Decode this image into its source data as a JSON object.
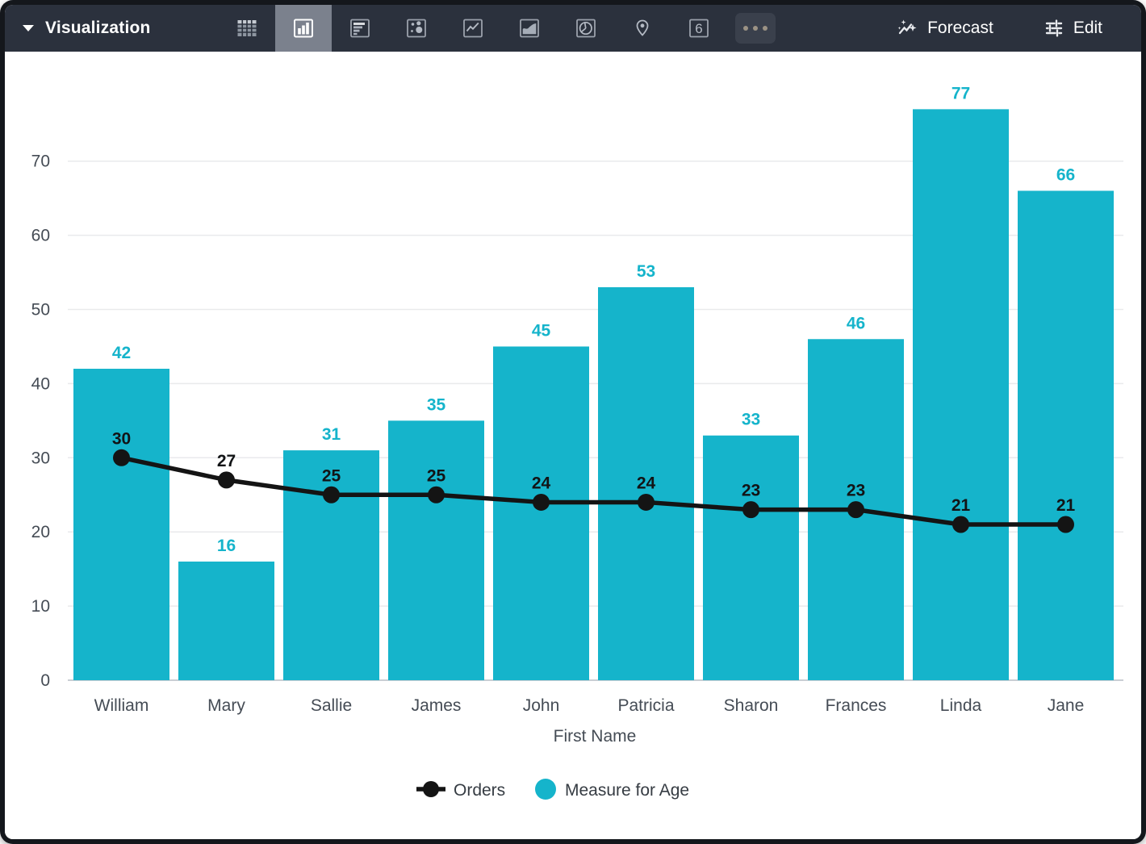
{
  "toolbar": {
    "title": "Visualization",
    "chart_types": [
      {
        "name": "table",
        "selected": false
      },
      {
        "name": "bar",
        "selected": true
      },
      {
        "name": "row",
        "selected": false
      },
      {
        "name": "scatter",
        "selected": false
      },
      {
        "name": "line",
        "selected": false
      },
      {
        "name": "area",
        "selected": false
      },
      {
        "name": "pie",
        "selected": false
      },
      {
        "name": "map",
        "selected": false
      },
      {
        "name": "single-value",
        "selected": false,
        "glyph": "6"
      },
      {
        "name": "more",
        "selected": false
      }
    ],
    "forecast_label": "Forecast",
    "edit_label": "Edit"
  },
  "colors": {
    "bar_teal": "#15b4cb",
    "line_black": "#141414",
    "toolbar_bg": "#2b313d",
    "selected_type_bg": "#7b818d",
    "axis_text": "#454c55",
    "gridline": "#e9eaec",
    "baseline": "#c9ced4"
  },
  "chart_data": {
    "type": "combo",
    "categories": [
      "William",
      "Mary",
      "Sallie",
      "James",
      "John",
      "Patricia",
      "Sharon",
      "Frances",
      "Linda",
      "Jane"
    ],
    "series": [
      {
        "name": "Orders",
        "type": "line",
        "color": "#141414",
        "values": [
          30,
          27,
          25,
          25,
          24,
          24,
          23,
          23,
          21,
          21
        ]
      },
      {
        "name": "Measure for Age",
        "type": "bar",
        "color": "#15b4cb",
        "values": [
          42,
          16,
          31,
          35,
          45,
          53,
          33,
          46,
          77,
          66
        ]
      }
    ],
    "xlabel": "First Name",
    "ylabel": "",
    "yticks": [
      0,
      10,
      20,
      30,
      40,
      50,
      60,
      70
    ],
    "ylim": [
      0,
      78
    ],
    "grid": true,
    "legend_position": "bottom",
    "value_labels": true
  }
}
